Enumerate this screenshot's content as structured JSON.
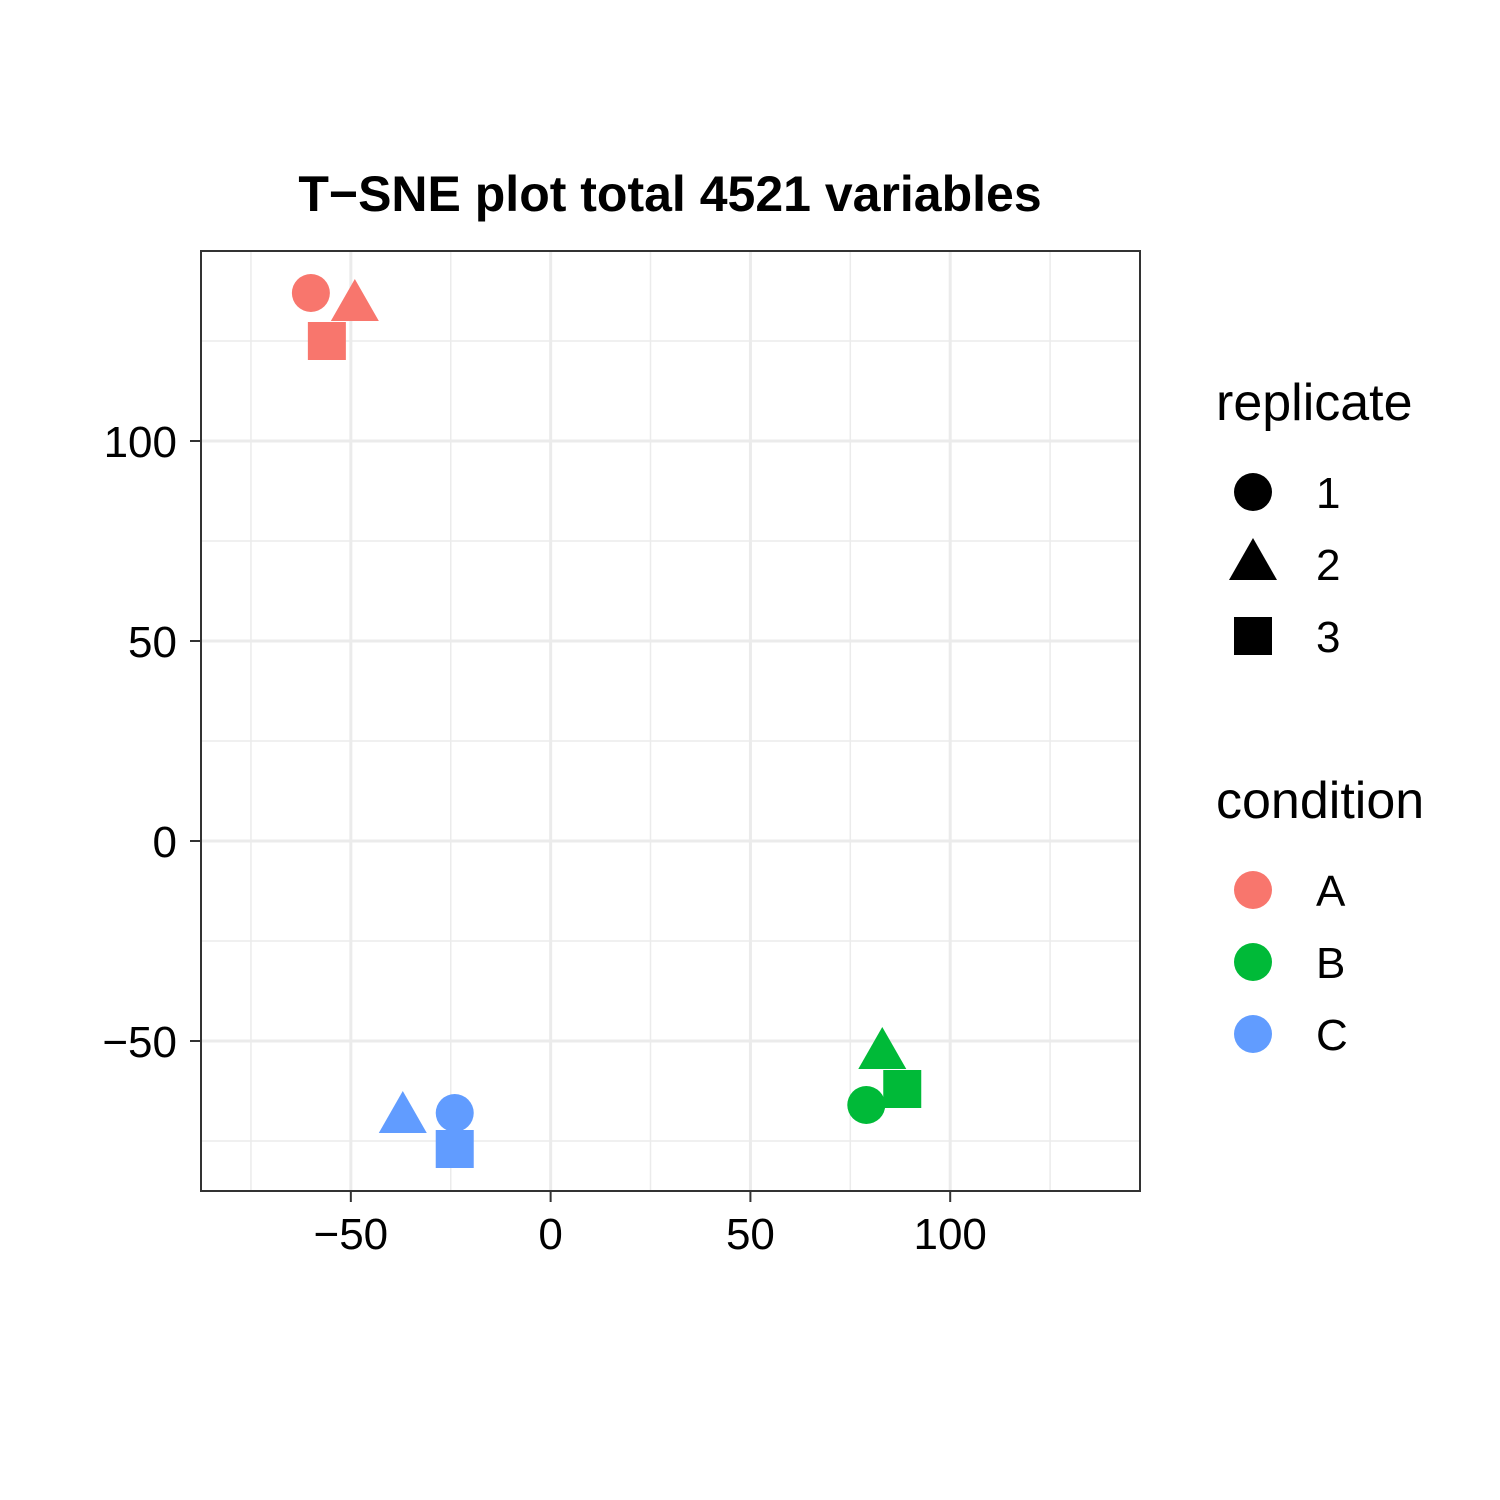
{
  "chart_data": {
    "type": "scatter",
    "title": "T−SNE plot total 4521 variables",
    "xlabel": "",
    "ylabel": "",
    "xlim": [
      -87.5,
      147.5
    ],
    "ylim": [
      -87.5,
      147.5
    ],
    "x_ticks": [
      -50,
      0,
      50,
      100
    ],
    "x_tick_labels": [
      "−50",
      "0",
      "50",
      "100"
    ],
    "y_ticks": [
      -50,
      0,
      50,
      100
    ],
    "y_tick_labels": [
      "−50",
      "0",
      "50",
      "100"
    ],
    "grid": true,
    "legend_position": "right",
    "points": [
      {
        "x": -60,
        "y": 137,
        "condition": "A",
        "replicate": "1"
      },
      {
        "x": -49,
        "y": 134,
        "condition": "A",
        "replicate": "2"
      },
      {
        "x": -56,
        "y": 125,
        "condition": "A",
        "replicate": "3"
      },
      {
        "x": 79,
        "y": -66,
        "condition": "B",
        "replicate": "1"
      },
      {
        "x": 83,
        "y": -53,
        "condition": "B",
        "replicate": "2"
      },
      {
        "x": 88,
        "y": -62,
        "condition": "B",
        "replicate": "3"
      },
      {
        "x": -24,
        "y": -68,
        "condition": "C",
        "replicate": "1"
      },
      {
        "x": -37,
        "y": -69,
        "condition": "C",
        "replicate": "2"
      },
      {
        "x": -24,
        "y": -77,
        "condition": "C",
        "replicate": "3"
      }
    ],
    "legends": [
      {
        "title": "replicate",
        "kind": "shape",
        "items": [
          {
            "label": "1",
            "shape": "circle"
          },
          {
            "label": "2",
            "shape": "triangle"
          },
          {
            "label": "3",
            "shape": "square"
          }
        ]
      },
      {
        "title": "condition",
        "kind": "color",
        "items": [
          {
            "label": "A",
            "color": "#F8766D"
          },
          {
            "label": "B",
            "color": "#00BA38"
          },
          {
            "label": "C",
            "color": "#619CFF"
          }
        ]
      }
    ],
    "colors": {
      "A": "#F8766D",
      "B": "#00BA38",
      "C": "#619CFF"
    },
    "shapes": {
      "1": "circle",
      "2": "triangle",
      "3": "square"
    }
  }
}
